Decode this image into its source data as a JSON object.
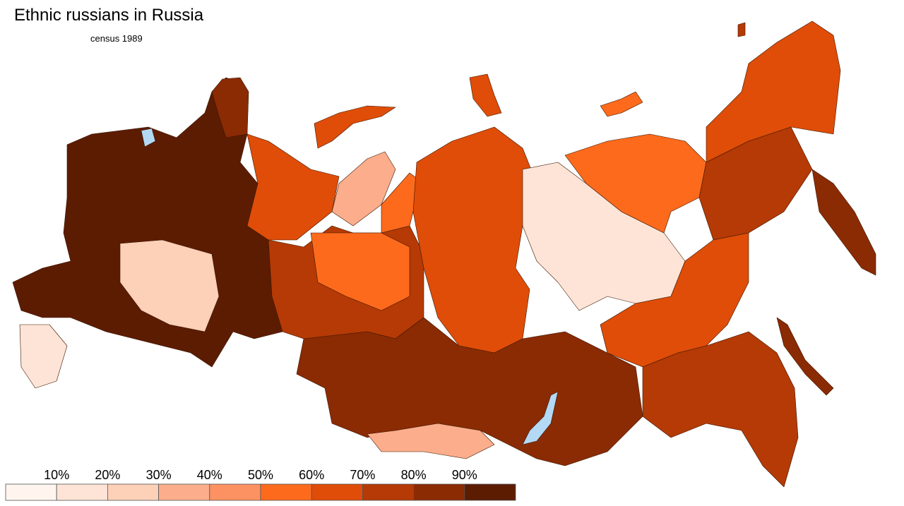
{
  "title": "Ethnic russians in Russia",
  "subtitle": "census 1989",
  "legend": {
    "labels": [
      "10%",
      "20%",
      "30%",
      "40%",
      "50%",
      "60%",
      "70%",
      "80%",
      "90%"
    ],
    "colors": [
      "#fff5ee",
      "#fee4d6",
      "#fdd0b8",
      "#fcae8c",
      "#fc9261",
      "#fd6a1c",
      "#df4d08",
      "#b53a05",
      "#8a2b04",
      "#5c1c02"
    ]
  }
}
